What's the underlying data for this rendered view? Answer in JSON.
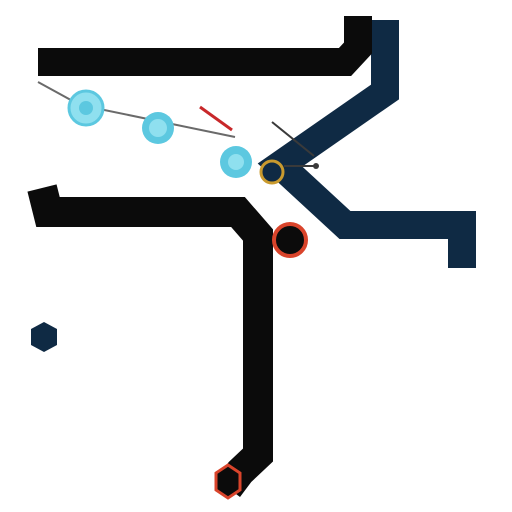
{
  "colors": {
    "background": "#ffffff",
    "track_black": "#0b0b0b",
    "track_navy": "#0f2a44",
    "node_cyan": "#5cc8e0",
    "node_cyan_light": "#8fe0ef",
    "node_red": "#d9442b",
    "node_gold": "#c99a2e",
    "leader_line": "#6a6a6a",
    "leader_red": "#c8282a"
  },
  "labels": {
    "top_right_1": "",
    "top_right_2": "",
    "top_right_3": "",
    "left_small": "",
    "legend_1": "",
    "legend_2": ""
  },
  "legend": {
    "icon": "hexagon-icon"
  }
}
